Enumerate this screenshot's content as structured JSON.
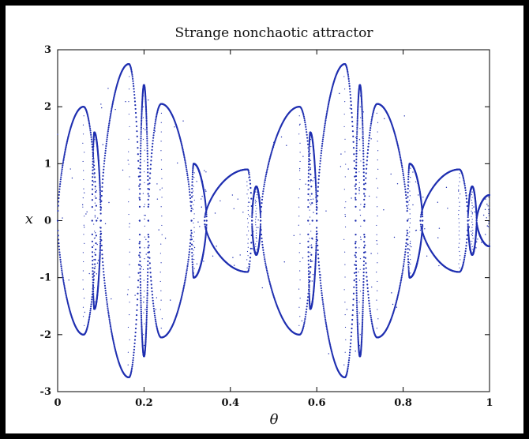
{
  "chart_data": {
    "type": "scatter",
    "title": "Strange nonchaotic attractor",
    "xlabel": "θ",
    "ylabel": "x",
    "xlim": [
      0,
      1
    ],
    "ylim": [
      -3,
      3
    ],
    "xticks": [
      0,
      0.2,
      0.4,
      0.6,
      0.8,
      1
    ],
    "xtick_labels": [
      "0",
      "0.2",
      "0.4",
      "0.6",
      "0.8",
      "1"
    ],
    "yticks": [
      -3,
      -2,
      -1,
      0,
      1,
      2,
      3
    ],
    "ytick_labels": [
      "-3",
      "-2",
      "-1",
      "0",
      "1",
      "2",
      "3"
    ],
    "grid": false,
    "series": [
      {
        "color": "#1f2fb0",
        "marker": "dot",
        "points_description_values": {
          "lobes": [
            {
              "theta_range": [
                0.0,
                0.09
              ],
              "peak_theta": 0.06,
              "peak_x": 2.0
            },
            {
              "theta_range": [
                0.08,
                0.1
              ],
              "peak_theta": 0.085,
              "peak_x": 1.55
            },
            {
              "theta_range": [
                0.1,
                0.19
              ],
              "peak_theta": 0.165,
              "peak_x": 2.75
            },
            {
              "theta_range": [
                0.19,
                0.21
              ],
              "peak_theta": 0.2,
              "peak_x": 2.38
            },
            {
              "theta_range": [
                0.21,
                0.31
              ],
              "peak_theta": 0.24,
              "peak_x": 2.05
            },
            {
              "theta_range": [
                0.31,
                0.345
              ],
              "peak_theta": 0.315,
              "peak_x": 1.0
            },
            {
              "theta_range": [
                0.34,
                0.45
              ],
              "peak_theta": 0.44,
              "peak_x": 0.9
            },
            {
              "theta_range": [
                0.45,
                0.47
              ],
              "peak_theta": 0.46,
              "peak_x": 0.6
            },
            {
              "theta_range": [
                0.47,
                0.59
              ],
              "peak_theta": 0.56,
              "peak_x": 2.0
            },
            {
              "theta_range": [
                0.58,
                0.6
              ],
              "peak_theta": 0.585,
              "peak_x": 1.55
            },
            {
              "theta_range": [
                0.6,
                0.69
              ],
              "peak_theta": 0.665,
              "peak_x": 2.75
            },
            {
              "theta_range": [
                0.69,
                0.71
              ],
              "peak_theta": 0.7,
              "peak_x": 2.38
            },
            {
              "theta_range": [
                0.71,
                0.81
              ],
              "peak_theta": 0.74,
              "peak_x": 2.05
            },
            {
              "theta_range": [
                0.81,
                0.845
              ],
              "peak_theta": 0.815,
              "peak_x": 1.0
            },
            {
              "theta_range": [
                0.84,
                0.95
              ],
              "peak_theta": 0.93,
              "peak_x": 0.9
            },
            {
              "theta_range": [
                0.95,
                0.97
              ],
              "peak_theta": 0.96,
              "peak_x": 0.6
            },
            {
              "theta_range": [
                0.97,
                1.0
              ],
              "peak_theta": 1.0,
              "peak_x": 0.45
            }
          ]
        }
      }
    ]
  }
}
